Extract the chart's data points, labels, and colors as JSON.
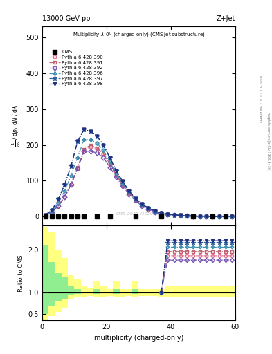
{
  "title_main": "13000 GeV pp",
  "title_right": "Z+Jet",
  "watermark": "CMS_2021_I1920187",
  "right_label1": "Rivet 3.1.10, ≥ 2.8M events",
  "right_label2": "mcplots.cern.ch [arXiv:1306.3436]",
  "xlabel": "multiplicity (charged-only)",
  "ylabel_main": "$\\mathrm{\\frac{1}{mathrm{d}N}}$",
  "ylabel_ratio": "Ratio to CMS",
  "ylim_main": [
    -25,
    530
  ],
  "ylim_ratio": [
    0.35,
    2.55
  ],
  "xlim": [
    0,
    60
  ],
  "yticks_main": [
    0,
    100,
    200,
    300,
    400,
    500
  ],
  "yticks_ratio": [
    0.5,
    1.0,
    2.0
  ],
  "cms_x": [
    1,
    3,
    5,
    7,
    9,
    11,
    13,
    17,
    21,
    29,
    37,
    47,
    53,
    57
  ],
  "cms_y": [
    0,
    0,
    0,
    0,
    0,
    0,
    0,
    0,
    0,
    0,
    0,
    0,
    0,
    0
  ],
  "series": [
    {
      "label": "Pythia 6.428 390",
      "color": "#e07090",
      "linestyle": "-.",
      "marker": "o",
      "markerfacecolor": "none",
      "x": [
        1,
        3,
        5,
        7,
        9,
        11,
        13,
        15,
        17,
        19,
        21,
        23,
        25,
        27,
        29,
        31,
        33,
        35,
        37,
        39,
        41,
        43,
        45,
        47,
        49,
        51,
        53,
        55,
        57,
        59
      ],
      "y": [
        3,
        12,
        30,
        55,
        90,
        135,
        185,
        195,
        190,
        175,
        145,
        115,
        90,
        65,
        45,
        32,
        22,
        14,
        9,
        6,
        4,
        3,
        2,
        1.5,
        1,
        0.8,
        0.5,
        0.3,
        0.2,
        0.1
      ]
    },
    {
      "label": "Pythia 6.428 391",
      "color": "#c06070",
      "linestyle": "-.",
      "marker": "s",
      "markerfacecolor": "none",
      "x": [
        1,
        3,
        5,
        7,
        9,
        11,
        13,
        15,
        17,
        19,
        21,
        23,
        25,
        27,
        29,
        31,
        33,
        35,
        37,
        39,
        41,
        43,
        45,
        47,
        49,
        51,
        53,
        55,
        57,
        59
      ],
      "y": [
        3,
        12,
        31,
        56,
        92,
        138,
        188,
        200,
        192,
        176,
        148,
        116,
        90,
        66,
        47,
        32,
        22,
        14,
        9,
        6,
        4,
        3,
        2,
        1.5,
        1,
        0.8,
        0.5,
        0.3,
        0.2,
        0.1
      ]
    },
    {
      "label": "Pythia 6.428 392",
      "color": "#7050b0",
      "linestyle": "-.",
      "marker": "D",
      "markerfacecolor": "none",
      "x": [
        1,
        3,
        5,
        7,
        9,
        11,
        13,
        15,
        17,
        19,
        21,
        23,
        25,
        27,
        29,
        31,
        33,
        35,
        37,
        39,
        41,
        43,
        45,
        47,
        49,
        51,
        53,
        55,
        57,
        59
      ],
      "y": [
        3,
        12,
        30,
        55,
        90,
        133,
        182,
        182,
        178,
        165,
        138,
        110,
        86,
        62,
        44,
        30,
        20,
        13,
        8,
        5.5,
        3.5,
        2.5,
        1.8,
        1.2,
        0.8,
        0.6,
        0.4,
        0.2,
        0.15,
        0.1
      ]
    },
    {
      "label": "Pythia 6.428 396",
      "color": "#4090b0",
      "linestyle": "-.",
      "marker": "P",
      "markerfacecolor": "none",
      "x": [
        1,
        3,
        5,
        7,
        9,
        11,
        13,
        15,
        17,
        19,
        21,
        23,
        25,
        27,
        29,
        31,
        33,
        35,
        37,
        39,
        41,
        43,
        45,
        47,
        49,
        51,
        53,
        55,
        57,
        59
      ],
      "y": [
        4,
        15,
        38,
        72,
        115,
        165,
        215,
        215,
        205,
        185,
        153,
        120,
        93,
        68,
        48,
        33,
        23,
        15,
        10,
        7,
        5,
        3.5,
        2.5,
        1.8,
        1.2,
        0.9,
        0.6,
        0.4,
        0.2,
        0.15
      ]
    },
    {
      "label": "Pythia 6.428 397",
      "color": "#3060a0",
      "linestyle": "-.",
      "marker": "*",
      "markerfacecolor": "none",
      "x": [
        1,
        3,
        5,
        7,
        9,
        11,
        13,
        15,
        17,
        19,
        21,
        23,
        25,
        27,
        29,
        31,
        33,
        35,
        37,
        39,
        41,
        43,
        45,
        47,
        49,
        51,
        53,
        55,
        57,
        59
      ],
      "y": [
        5,
        18,
        48,
        90,
        142,
        210,
        243,
        238,
        225,
        200,
        165,
        128,
        98,
        72,
        50,
        35,
        24,
        16,
        10,
        7,
        5,
        3.5,
        2.5,
        1.8,
        1.2,
        0.9,
        0.6,
        0.4,
        0.2,
        0.15
      ]
    },
    {
      "label": "Pythia 6.428 398",
      "color": "#203080",
      "linestyle": "-.",
      "marker": "v",
      "markerfacecolor": "#203080",
      "x": [
        1,
        3,
        5,
        7,
        9,
        11,
        13,
        15,
        17,
        19,
        21,
        23,
        25,
        27,
        29,
        31,
        33,
        35,
        37,
        39,
        41,
        43,
        45,
        47,
        49,
        51,
        53,
        55,
        57,
        59
      ],
      "y": [
        5,
        18,
        48,
        90,
        142,
        210,
        243,
        238,
        225,
        200,
        165,
        128,
        98,
        72,
        50,
        35,
        24,
        16,
        10,
        7,
        5,
        3.5,
        2.5,
        1.8,
        1.2,
        0.9,
        0.6,
        0.4,
        0.2,
        0.15
      ]
    }
  ],
  "ratio_bands": {
    "green_color": "#90ee90",
    "yellow_color": "#ffff80",
    "x_edges": [
      0,
      2,
      4,
      6,
      8,
      10,
      12,
      14,
      16,
      18,
      20,
      22,
      24,
      26,
      28,
      30,
      32,
      34,
      36,
      38,
      40,
      42,
      44,
      46,
      48,
      50,
      52,
      54,
      56,
      58,
      60
    ],
    "yellow_lo": [
      0.3,
      0.45,
      0.55,
      0.65,
      0.85,
      0.88,
      0.9,
      0.92,
      0.88,
      0.9,
      0.92,
      0.88,
      0.9,
      0.92,
      0.88,
      0.92,
      0.92,
      0.92,
      0.9,
      0.9,
      0.9,
      0.9,
      0.9,
      0.9,
      0.9,
      0.9,
      0.9,
      0.9,
      0.9,
      0.9
    ],
    "green_lo": [
      0.5,
      0.7,
      0.8,
      0.85,
      0.95,
      0.97,
      1.0,
      1.0,
      0.97,
      1.0,
      1.0,
      0.97,
      1.0,
      1.0,
      0.97,
      1.0,
      1.0,
      1.0,
      1.0,
      1.0,
      1.0,
      1.0,
      1.0,
      1.0,
      1.0,
      1.0,
      1.0,
      1.0,
      1.0,
      1.0
    ],
    "green_hi": [
      2.1,
      1.7,
      1.45,
      1.35,
      1.15,
      1.08,
      1.0,
      1.0,
      1.08,
      1.0,
      1.0,
      1.08,
      1.0,
      1.0,
      1.08,
      1.0,
      1.0,
      1.0,
      1.0,
      1.0,
      1.0,
      1.0,
      1.0,
      1.0,
      1.0,
      1.0,
      1.0,
      1.0,
      1.0,
      1.0
    ],
    "yellow_hi": [
      2.5,
      2.4,
      2.0,
      1.8,
      1.4,
      1.3,
      1.15,
      1.1,
      1.25,
      1.15,
      1.08,
      1.25,
      1.08,
      1.08,
      1.25,
      1.08,
      1.08,
      1.08,
      1.08,
      1.15,
      1.15,
      1.15,
      1.15,
      1.15,
      1.15,
      1.15,
      1.15,
      1.15,
      1.15,
      1.15
    ]
  },
  "ratio_lines": [
    {
      "color": "#e07090",
      "linestyle": "-.",
      "marker": "o",
      "mfc": "none",
      "x": [
        37,
        39,
        41,
        43,
        45,
        47,
        49,
        51,
        53,
        55,
        57,
        59
      ],
      "y": [
        1.0,
        1.85,
        1.85,
        1.85,
        1.85,
        1.85,
        1.85,
        1.85,
        1.85,
        1.85,
        1.85,
        1.85
      ]
    },
    {
      "color": "#c06070",
      "linestyle": "-.",
      "marker": "s",
      "mfc": "none",
      "x": [
        37,
        39,
        41,
        43,
        45,
        47,
        49,
        51,
        53,
        55,
        57,
        59
      ],
      "y": [
        1.0,
        1.95,
        1.95,
        1.95,
        1.95,
        1.95,
        1.95,
        1.95,
        1.95,
        1.95,
        1.95,
        1.95
      ]
    },
    {
      "color": "#7050b0",
      "linestyle": "-.",
      "marker": "D",
      "mfc": "none",
      "x": [
        37,
        39,
        41,
        43,
        45,
        47,
        49,
        51,
        53,
        55,
        57,
        59
      ],
      "y": [
        1.0,
        1.75,
        1.75,
        1.75,
        1.75,
        1.75,
        1.75,
        1.75,
        1.75,
        1.75,
        1.75,
        1.75
      ]
    },
    {
      "color": "#4090b0",
      "linestyle": "-.",
      "marker": "P",
      "mfc": "none",
      "x": [
        37,
        39,
        41,
        43,
        45,
        47,
        49,
        51,
        53,
        55,
        57,
        59
      ],
      "y": [
        1.0,
        2.05,
        2.05,
        2.05,
        2.05,
        2.05,
        2.05,
        2.05,
        2.05,
        2.05,
        2.05,
        2.05
      ]
    },
    {
      "color": "#3060a0",
      "linestyle": "-.",
      "marker": "*",
      "mfc": "none",
      "x": [
        37,
        39,
        41,
        43,
        45,
        47,
        49,
        51,
        53,
        55,
        57,
        59
      ],
      "y": [
        1.0,
        2.15,
        2.15,
        2.15,
        2.15,
        2.15,
        2.15,
        2.15,
        2.15,
        2.15,
        2.15,
        2.15
      ]
    },
    {
      "color": "#203080",
      "linestyle": "-.",
      "marker": "v",
      "mfc": "#203080",
      "x": [
        37,
        39,
        41,
        43,
        45,
        47,
        49,
        51,
        53,
        55,
        57,
        59
      ],
      "y": [
        1.0,
        2.2,
        2.2,
        2.2,
        2.2,
        2.2,
        2.2,
        2.2,
        2.2,
        2.2,
        2.2,
        2.2
      ]
    }
  ]
}
